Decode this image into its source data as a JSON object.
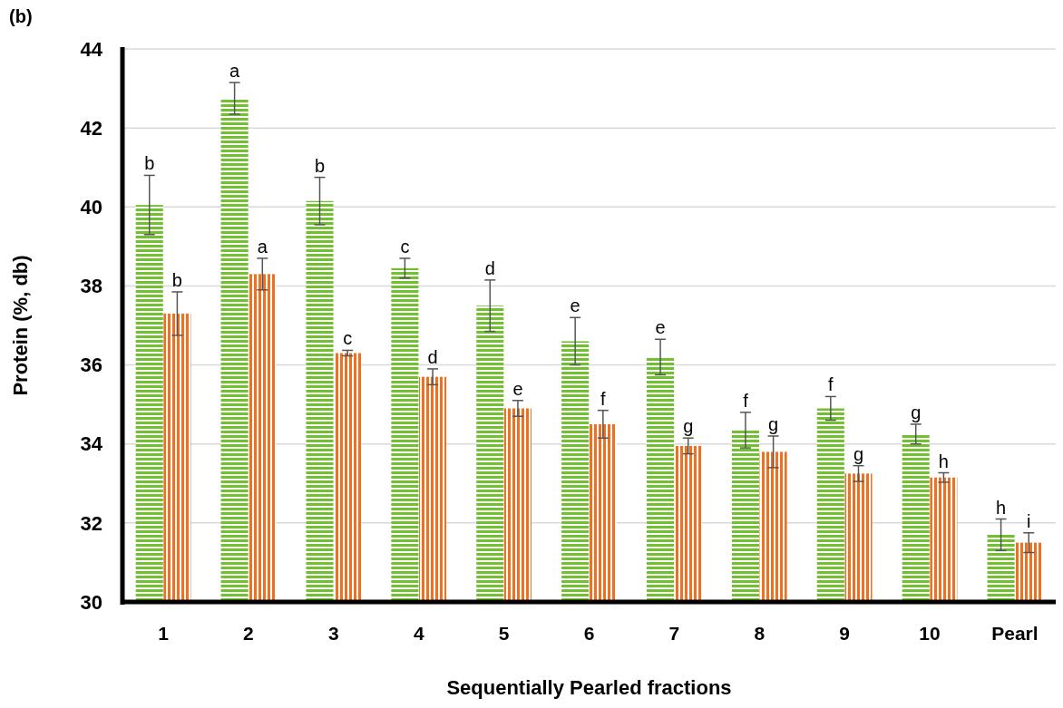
{
  "chart_data": {
    "type": "bar",
    "title": "(b)",
    "xlabel": "Sequentially Pearled fractions",
    "ylabel": "Protein (%, db)",
    "categories": [
      "1",
      "2",
      "3",
      "4",
      "5",
      "6",
      "7",
      "8",
      "9",
      "10",
      "Pearl"
    ],
    "series": [
      {
        "color": "#70c030",
        "values": [
          40.05,
          42.75,
          40.15,
          38.45,
          37.5,
          36.6,
          36.2,
          34.35,
          34.9,
          34.25,
          31.7
        ],
        "errors": [
          0.75,
          0.4,
          0.6,
          0.25,
          0.65,
          0.6,
          0.45,
          0.45,
          0.3,
          0.25,
          0.4
        ],
        "value_labels": [
          "b",
          "a",
          "b",
          "c",
          "d",
          "e",
          "e",
          "f",
          "f",
          "g",
          "h"
        ]
      },
      {
        "color": "#ee7020",
        "values": [
          37.3,
          38.3,
          36.3,
          35.7,
          34.9,
          34.5,
          33.95,
          33.8,
          33.25,
          33.15,
          31.5
        ],
        "errors": [
          0.55,
          0.4,
          0.07,
          0.2,
          0.2,
          0.35,
          0.2,
          0.4,
          0.2,
          0.12,
          0.25
        ],
        "value_labels": [
          "b",
          "a",
          "c",
          "d",
          "e",
          "f",
          "g",
          "g",
          "g",
          "h",
          "i"
        ]
      }
    ],
    "ylim": [
      30,
      44
    ],
    "yticks": [
      30,
      32,
      34,
      36,
      38,
      40,
      42,
      44
    ],
    "grid": "y"
  }
}
